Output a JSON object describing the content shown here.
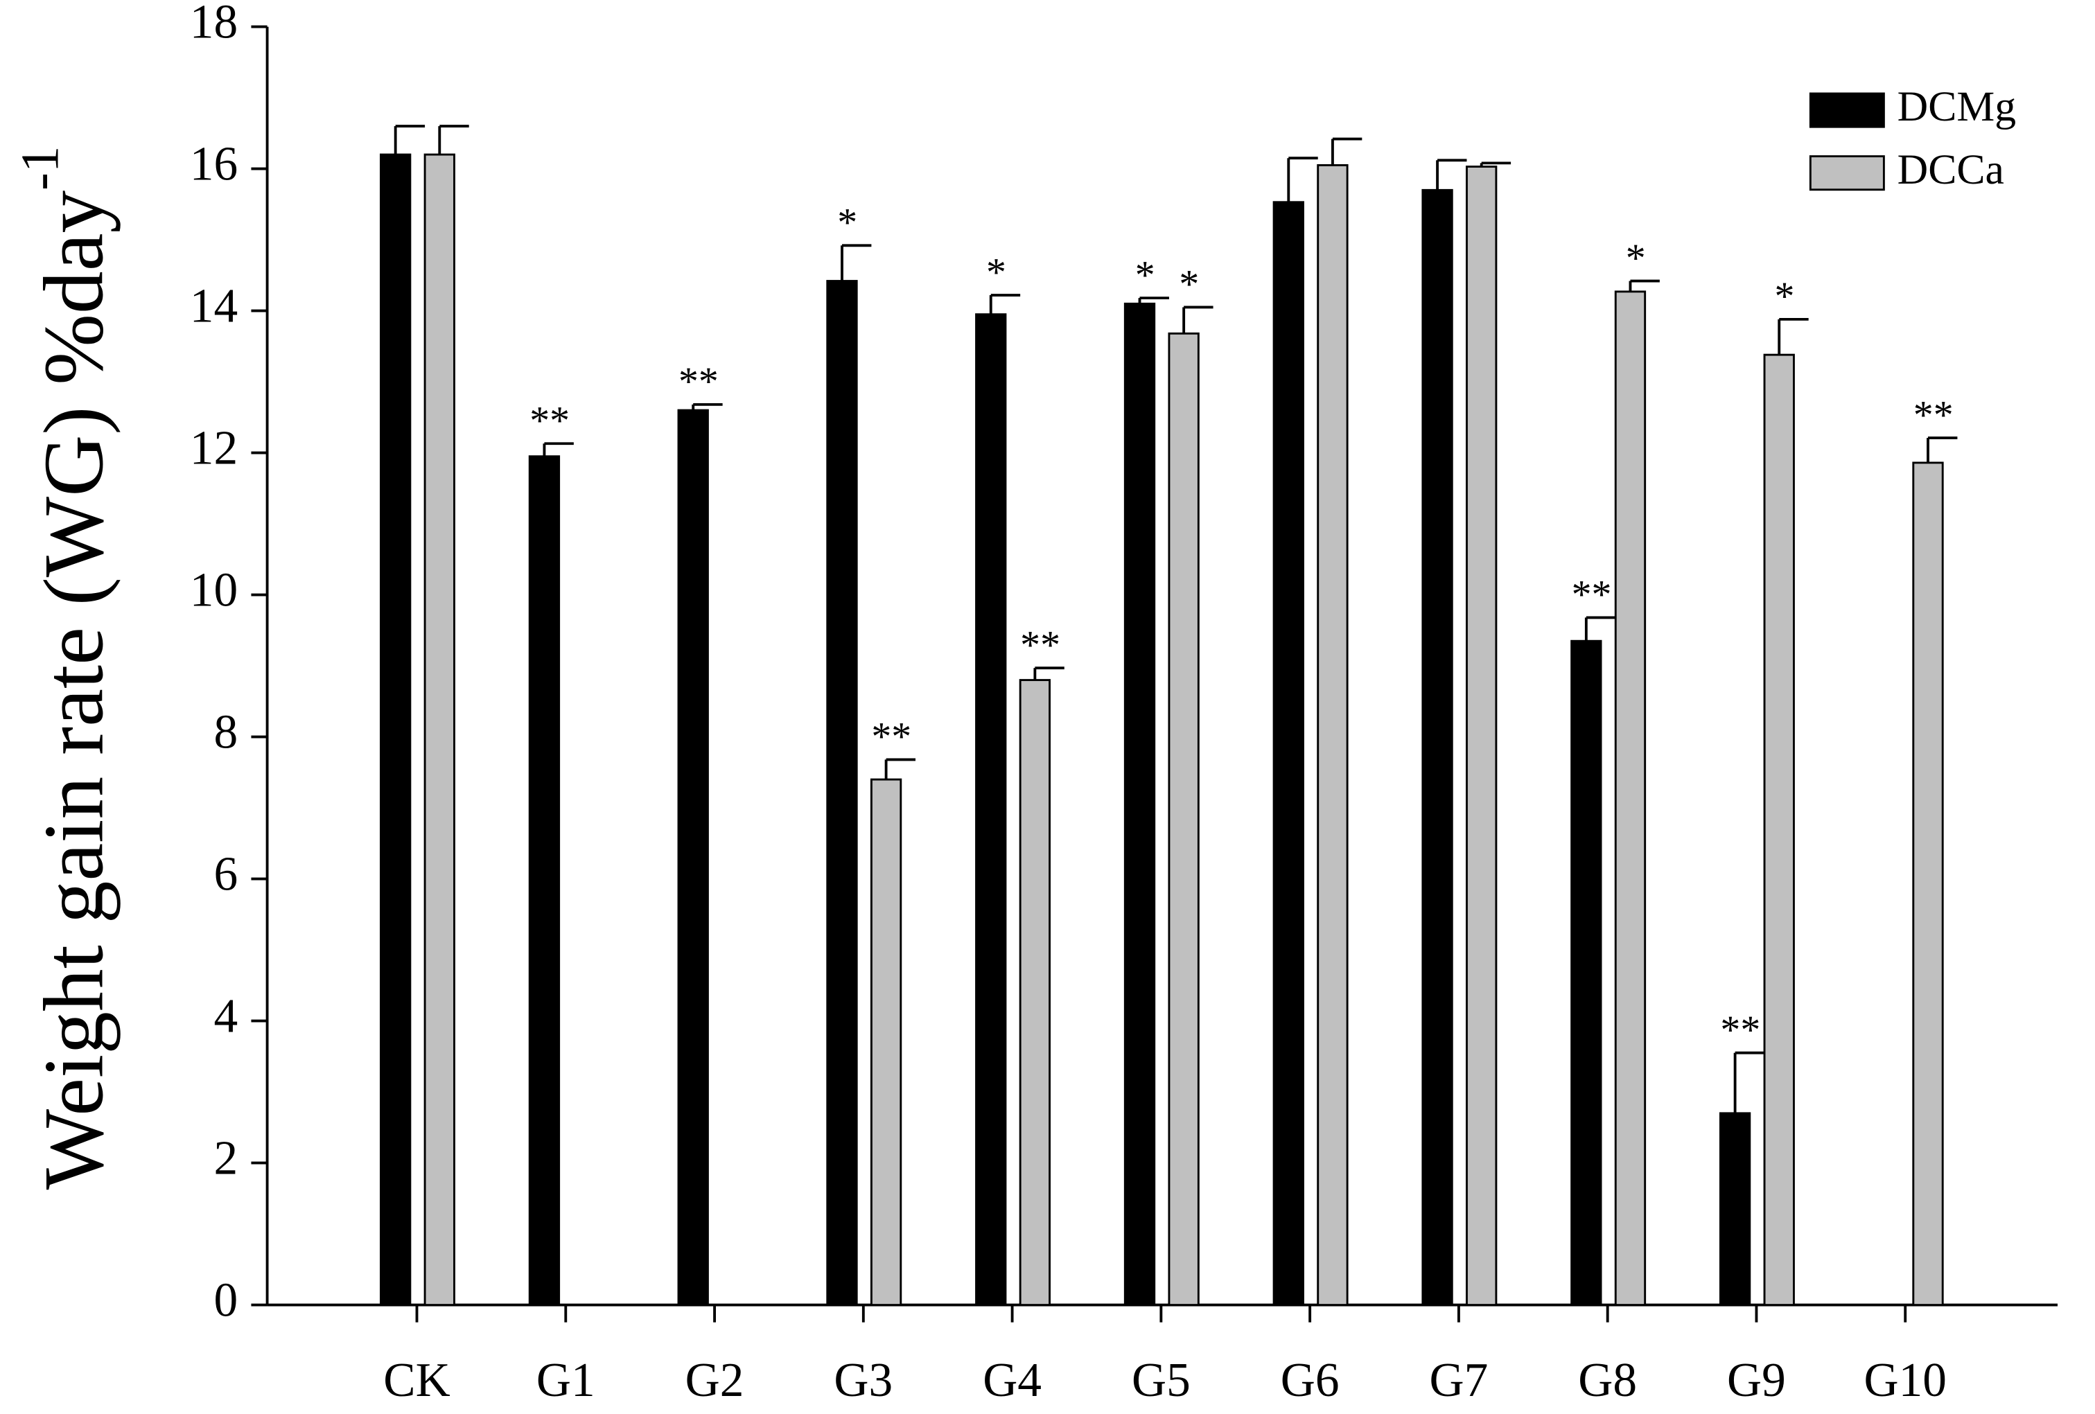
{
  "chart_data": {
    "type": "bar",
    "ylabel": "Weight gain rate (WG) %day",
    "ylabel_superscript": "-1",
    "categories": [
      "CK",
      "G1",
      "G2",
      "G3",
      "G4",
      "G5",
      "G6",
      "G7",
      "G8",
      "G9",
      "G10"
    ],
    "series": [
      {
        "name": "DCMg",
        "color": "#000000",
        "values": [
          16.2,
          11.95,
          12.6,
          14.42,
          13.95,
          14.1,
          15.53,
          15.7,
          9.35,
          2.7,
          null
        ],
        "errors": [
          0.4,
          0.18,
          0.08,
          0.5,
          0.27,
          0.08,
          0.62,
          0.42,
          0.33,
          0.85,
          null
        ],
        "significance": [
          null,
          "**",
          "**",
          "*",
          "*",
          "*",
          null,
          null,
          "**",
          "**",
          null
        ]
      },
      {
        "name": "DCCa",
        "color": "#c0c0c0",
        "values": [
          16.2,
          null,
          null,
          7.4,
          8.8,
          13.68,
          16.05,
          16.03,
          14.27,
          13.38,
          11.86
        ],
        "errors": [
          0.4,
          null,
          null,
          0.28,
          0.17,
          0.37,
          0.37,
          0.05,
          0.15,
          0.5,
          0.35
        ],
        "significance": [
          null,
          null,
          null,
          "**",
          "**",
          "*",
          null,
          null,
          "*",
          "*",
          "**"
        ]
      }
    ],
    "ylim": [
      0,
      18
    ],
    "yticks": [
      0,
      2,
      4,
      6,
      8,
      10,
      12,
      14,
      16,
      18
    ],
    "legend": "upper right"
  }
}
